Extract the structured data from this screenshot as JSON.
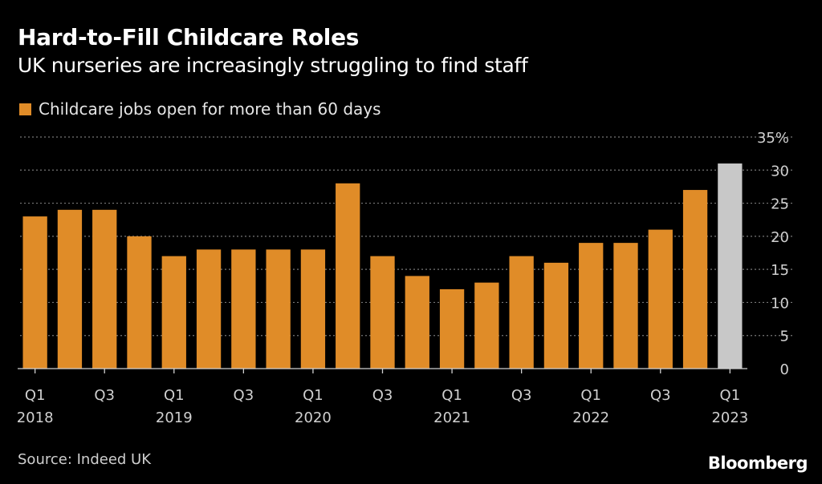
{
  "header": {
    "title": "Hard-to-Fill Childcare Roles",
    "subtitle": "UK nurseries are increasingly struggling to find staff"
  },
  "legend": {
    "label": "Childcare jobs open for more than 60 days"
  },
  "footer": {
    "source": "Source: Indeed UK",
    "brand": "Bloomberg"
  },
  "colors": {
    "bar": "#e08c28",
    "highlight": "#c8c8c8",
    "grid": "#777777",
    "background": "#000000"
  },
  "chart_data": {
    "type": "bar",
    "title": "Hard-to-Fill Childcare Roles",
    "subtitle": "UK nurseries are increasingly struggling to find staff",
    "series_name": "Childcare jobs open for more than 60 days",
    "categories": [
      "2018 Q1",
      "2018 Q2",
      "2018 Q3",
      "2018 Q4",
      "2019 Q1",
      "2019 Q2",
      "2019 Q3",
      "2019 Q4",
      "2020 Q1",
      "2020 Q2",
      "2020 Q3",
      "2020 Q4",
      "2021 Q1",
      "2021 Q2",
      "2021 Q3",
      "2021 Q4",
      "2022 Q1",
      "2022 Q2",
      "2022 Q3",
      "2022 Q4",
      "2023 Q1"
    ],
    "values": [
      23,
      24,
      24,
      20,
      17,
      18,
      18,
      18,
      18,
      28,
      17,
      14,
      12,
      13,
      17,
      16,
      19,
      19,
      21,
      27,
      31
    ],
    "highlight_index": 20,
    "ylim": [
      0,
      35
    ],
    "yticks": [
      0,
      5,
      10,
      15,
      20,
      25,
      30,
      35
    ],
    "ytick_labels": [
      "0",
      "5",
      "10",
      "15",
      "20",
      "25",
      "30",
      "35%"
    ],
    "xtick_labels": [
      {
        "index": 0,
        "quarter": "Q1",
        "year": "2018"
      },
      {
        "index": 2,
        "quarter": "Q3",
        "year": ""
      },
      {
        "index": 4,
        "quarter": "Q1",
        "year": "2019"
      },
      {
        "index": 6,
        "quarter": "Q3",
        "year": ""
      },
      {
        "index": 8,
        "quarter": "Q1",
        "year": "2020"
      },
      {
        "index": 10,
        "quarter": "Q3",
        "year": ""
      },
      {
        "index": 12,
        "quarter": "Q1",
        "year": "2021"
      },
      {
        "index": 14,
        "quarter": "Q3",
        "year": ""
      },
      {
        "index": 16,
        "quarter": "Q1",
        "year": "2022"
      },
      {
        "index": 18,
        "quarter": "Q3",
        "year": ""
      },
      {
        "index": 20,
        "quarter": "Q1",
        "year": "2023"
      }
    ],
    "xlabel": "",
    "ylabel": "",
    "grid": true,
    "legend_position": "top-left"
  }
}
